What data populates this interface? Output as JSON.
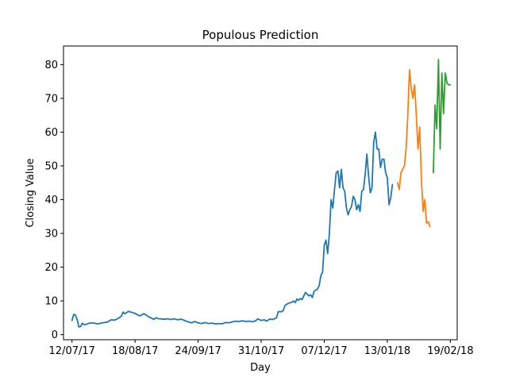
{
  "chart_data": {
    "type": "line",
    "title": "Populous Prediction",
    "xlabel": "Day",
    "ylabel": "Closing Value",
    "ylim": [
      -1.5,
      85.5
    ],
    "xlim": [
      "2017-07-07",
      "2018-02-23"
    ],
    "x_ticks": [
      {
        "date": "2017-07-12",
        "label": "12/07/17"
      },
      {
        "date": "2017-08-18",
        "label": "18/08/17"
      },
      {
        "date": "2017-09-24",
        "label": "24/09/17"
      },
      {
        "date": "2017-10-31",
        "label": "31/10/17"
      },
      {
        "date": "2017-12-07",
        "label": "07/12/17"
      },
      {
        "date": "2018-01-13",
        "label": "13/01/18"
      },
      {
        "date": "2018-02-19",
        "label": "19/02/18"
      }
    ],
    "y_ticks": [
      0,
      10,
      20,
      30,
      40,
      50,
      60,
      70,
      80
    ],
    "grid": false,
    "series": [
      {
        "color": "#1f77b4",
        "points": [
          [
            "2017-07-12",
            4.2
          ],
          [
            "2017-07-13",
            6.0
          ],
          [
            "2017-07-14",
            5.8
          ],
          [
            "2017-07-15",
            4.5
          ],
          [
            "2017-07-16",
            2.3
          ],
          [
            "2017-07-17",
            2.4
          ],
          [
            "2017-07-18",
            3.4
          ],
          [
            "2017-07-19",
            3.0
          ],
          [
            "2017-07-20",
            3.0
          ],
          [
            "2017-07-22",
            3.4
          ],
          [
            "2017-07-24",
            3.5
          ],
          [
            "2017-07-27",
            3.2
          ],
          [
            "2017-07-30",
            3.5
          ],
          [
            "2017-08-02",
            3.8
          ],
          [
            "2017-08-04",
            4.4
          ],
          [
            "2017-08-06",
            4.3
          ],
          [
            "2017-08-08",
            4.8
          ],
          [
            "2017-08-10",
            5.5
          ],
          [
            "2017-08-11",
            6.7
          ],
          [
            "2017-08-12",
            6.2
          ],
          [
            "2017-08-13",
            6.5
          ],
          [
            "2017-08-14",
            6.9
          ],
          [
            "2017-08-16",
            6.6
          ],
          [
            "2017-08-18",
            6.3
          ],
          [
            "2017-08-20",
            5.7
          ],
          [
            "2017-08-21",
            5.6
          ],
          [
            "2017-08-23",
            6.2
          ],
          [
            "2017-08-24",
            6.0
          ],
          [
            "2017-08-26",
            5.3
          ],
          [
            "2017-08-28",
            4.8
          ],
          [
            "2017-08-29",
            4.5
          ],
          [
            "2017-08-30",
            5.0
          ],
          [
            "2017-09-01",
            4.7
          ],
          [
            "2017-09-04",
            4.6
          ],
          [
            "2017-09-06",
            4.7
          ],
          [
            "2017-09-08",
            4.5
          ],
          [
            "2017-09-10",
            4.7
          ],
          [
            "2017-09-12",
            4.4
          ],
          [
            "2017-09-14",
            4.6
          ],
          [
            "2017-09-16",
            4.2
          ],
          [
            "2017-09-18",
            3.8
          ],
          [
            "2017-09-20",
            3.5
          ],
          [
            "2017-09-22",
            3.9
          ],
          [
            "2017-09-24",
            3.5
          ],
          [
            "2017-09-26",
            3.3
          ],
          [
            "2017-09-28",
            3.6
          ],
          [
            "2017-09-30",
            3.3
          ],
          [
            "2017-10-02",
            3.4
          ],
          [
            "2017-10-04",
            3.2
          ],
          [
            "2017-10-06",
            3.3
          ],
          [
            "2017-10-08",
            3.2
          ],
          [
            "2017-10-10",
            3.6
          ],
          [
            "2017-10-12",
            3.5
          ],
          [
            "2017-10-14",
            3.8
          ],
          [
            "2017-10-16",
            4.0
          ],
          [
            "2017-10-18",
            3.9
          ],
          [
            "2017-10-20",
            4.1
          ],
          [
            "2017-10-22",
            3.9
          ],
          [
            "2017-10-24",
            4.0
          ],
          [
            "2017-10-26",
            3.8
          ],
          [
            "2017-10-28",
            4.2
          ],
          [
            "2017-10-29",
            4.7
          ],
          [
            "2017-10-31",
            4.2
          ],
          [
            "2017-11-02",
            4.4
          ],
          [
            "2017-11-03",
            4.0
          ],
          [
            "2017-11-05",
            4.6
          ],
          [
            "2017-11-07",
            4.5
          ],
          [
            "2017-11-09",
            5.0
          ],
          [
            "2017-11-10",
            6.8
          ],
          [
            "2017-11-12",
            6.8
          ],
          [
            "2017-11-13",
            7.2
          ],
          [
            "2017-11-14",
            8.7
          ],
          [
            "2017-11-16",
            9.3
          ],
          [
            "2017-11-18",
            9.6
          ],
          [
            "2017-11-19",
            10.0
          ],
          [
            "2017-11-20",
            9.5
          ],
          [
            "2017-11-21",
            10.6
          ],
          [
            "2017-11-22",
            10.2
          ],
          [
            "2017-11-23",
            10.7
          ],
          [
            "2017-11-24",
            10.4
          ],
          [
            "2017-11-25",
            11.5
          ],
          [
            "2017-11-26",
            12.5
          ],
          [
            "2017-11-27",
            12.0
          ],
          [
            "2017-11-28",
            11.5
          ],
          [
            "2017-11-29",
            11.8
          ],
          [
            "2017-11-30",
            11.0
          ],
          [
            "2017-12-01",
            12.8
          ],
          [
            "2017-12-02",
            13.2
          ],
          [
            "2017-12-03",
            13.5
          ],
          [
            "2017-12-04",
            14.5
          ],
          [
            "2017-12-05",
            17.5
          ],
          [
            "2017-12-06",
            18.5
          ],
          [
            "2017-12-07",
            26.5
          ],
          [
            "2017-12-08",
            28.0
          ],
          [
            "2017-12-09",
            24.0
          ],
          [
            "2017-12-10",
            30.0
          ],
          [
            "2017-12-11",
            40.0
          ],
          [
            "2017-12-12",
            37.5
          ],
          [
            "2017-12-13",
            43.0
          ],
          [
            "2017-12-14",
            48.0
          ],
          [
            "2017-12-15",
            48.5
          ],
          [
            "2017-12-16",
            43.5
          ],
          [
            "2017-12-17",
            49.0
          ],
          [
            "2017-12-18",
            43.5
          ],
          [
            "2017-12-19",
            42.5
          ],
          [
            "2017-12-20",
            37.5
          ],
          [
            "2017-12-21",
            35.5
          ],
          [
            "2017-12-22",
            37.0
          ],
          [
            "2017-12-23",
            38.0
          ],
          [
            "2017-12-24",
            41.0
          ],
          [
            "2017-12-25",
            40.0
          ],
          [
            "2017-12-26",
            37.0
          ],
          [
            "2017-12-27",
            38.5
          ],
          [
            "2017-12-28",
            36.5
          ],
          [
            "2017-12-29",
            42.5
          ],
          [
            "2017-12-30",
            43.0
          ],
          [
            "2017-12-31",
            47.5
          ],
          [
            "2018-01-01",
            53.5
          ],
          [
            "2018-01-02",
            47.0
          ],
          [
            "2018-01-03",
            42.0
          ],
          [
            "2018-01-04",
            43.5
          ],
          [
            "2018-01-05",
            57.0
          ],
          [
            "2018-01-06",
            60.0
          ],
          [
            "2018-01-07",
            55.0
          ],
          [
            "2018-01-08",
            55.0
          ],
          [
            "2018-01-09",
            49.5
          ],
          [
            "2018-01-10",
            52.0
          ],
          [
            "2018-01-11",
            52.0
          ],
          [
            "2018-01-12",
            48.0
          ],
          [
            "2018-01-13",
            46.5
          ],
          [
            "2018-01-14",
            38.5
          ],
          [
            "2018-01-15",
            40.5
          ],
          [
            "2018-01-16",
            44.5
          ]
        ]
      },
      {
        "color": "#ff7f0e",
        "points": [
          [
            "2018-01-19",
            45.0
          ],
          [
            "2018-01-20",
            43.0
          ],
          [
            "2018-01-21",
            48.0
          ],
          [
            "2018-01-22",
            49.0
          ],
          [
            "2018-01-23",
            50.0
          ],
          [
            "2018-01-24",
            55.0
          ],
          [
            "2018-01-25",
            65.0
          ],
          [
            "2018-01-26",
            78.5
          ],
          [
            "2018-01-27",
            73.0
          ],
          [
            "2018-01-28",
            70.0
          ],
          [
            "2018-01-29",
            74.0
          ],
          [
            "2018-01-30",
            65.0
          ],
          [
            "2018-01-31",
            55.0
          ],
          [
            "2018-02-01",
            61.5
          ],
          [
            "2018-02-02",
            46.0
          ],
          [
            "2018-02-03",
            36.5
          ],
          [
            "2018-02-04",
            40.0
          ],
          [
            "2018-02-05",
            33.0
          ],
          [
            "2018-02-06",
            33.5
          ],
          [
            "2018-02-07",
            32.0
          ]
        ]
      },
      {
        "color": "#2ca02c",
        "points": [
          [
            "2018-02-09",
            48.0
          ],
          [
            "2018-02-10",
            68.0
          ],
          [
            "2018-02-11",
            61.0
          ],
          [
            "2018-02-12",
            81.5
          ],
          [
            "2018-02-13",
            55.0
          ],
          [
            "2018-02-14",
            77.5
          ],
          [
            "2018-02-15",
            65.5
          ],
          [
            "2018-02-16",
            77.5
          ],
          [
            "2018-02-17",
            74.5
          ],
          [
            "2018-02-18",
            74.0
          ],
          [
            "2018-02-19",
            74.0
          ]
        ]
      }
    ]
  }
}
